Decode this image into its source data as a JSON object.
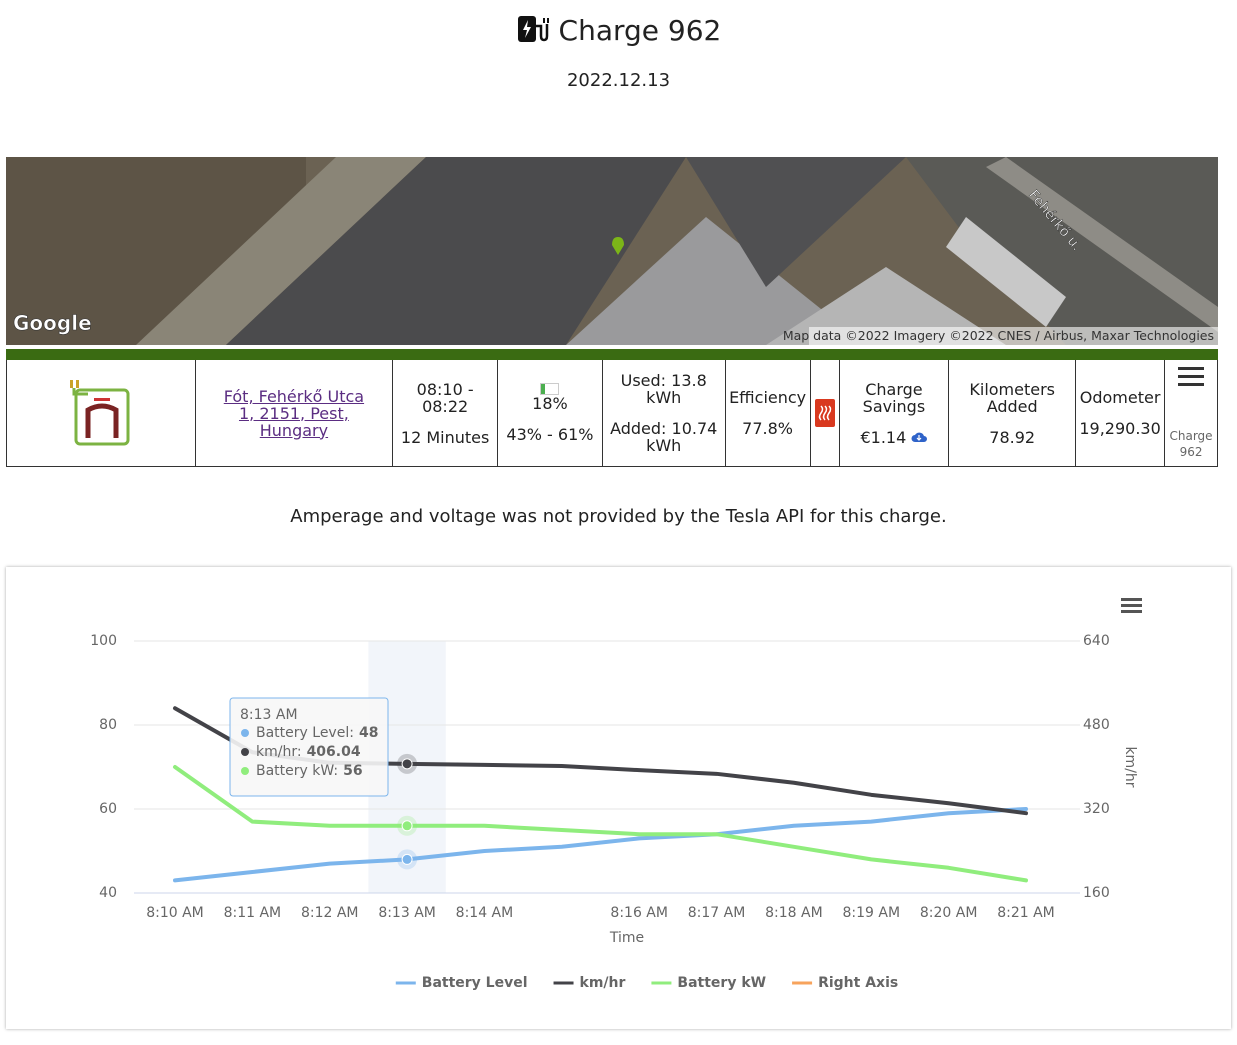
{
  "header": {
    "title": "Charge 962",
    "date": "2022.12.13"
  },
  "map": {
    "street_label": "Fehérkő u.",
    "logo": "Google",
    "attribution": "Map data ©2022 Imagery ©2022 CNES / Airbus, Maxar Technologies"
  },
  "summary": {
    "address": "Fót, Fehérkő Utca 1, 2151, Pest, Hungary",
    "time_range": "08:10 - 08:22",
    "duration": "12 Minutes",
    "battery_now": "18%",
    "battery_range": "43% - 61%",
    "used": "Used: 13.8 kWh",
    "added": "Added: 10.74 kWh",
    "efficiency_label": "Efficiency",
    "efficiency": "77.8%",
    "savings_label": "Charge Savings",
    "savings": "€1.14",
    "km_label": "Kilometers Added",
    "km": "78.92",
    "odometer_label": "Odometer",
    "odometer": "19,290.30",
    "menu_caption": "Charge 962"
  },
  "note": "Amperage and voltage was not provided by the Tesla API for this charge.",
  "chart_data": {
    "type": "line",
    "categories": [
      "8:10 AM",
      "8:11 AM",
      "8:12 AM",
      "8:13 AM",
      "8:14 AM",
      null,
      "8:16 AM",
      "8:17 AM",
      "8:18 AM",
      "8:19 AM",
      "8:20 AM",
      "8:21 AM"
    ],
    "x_label": "Time",
    "y2_label": "km/hr",
    "ylim": [
      40,
      100
    ],
    "yticks": [
      40,
      60,
      80,
      100
    ],
    "y2lim": [
      160,
      640
    ],
    "y2ticks": [
      160,
      320,
      480,
      640
    ],
    "grid": true,
    "legend": "bottom",
    "series": [
      {
        "name": "Battery Level",
        "color": "#7cb5ec",
        "values": [
          43,
          45,
          47,
          48,
          50,
          51,
          53,
          54,
          56,
          57,
          59,
          60
        ]
      },
      {
        "name": "km/hr",
        "color": "#434348",
        "axis": "y2",
        "values": [
          512,
          428,
          408,
          406.04,
          404,
          402,
          394,
          387,
          370,
          347,
          331,
          312
        ]
      },
      {
        "name": "Battery kW",
        "color": "#90ed7d",
        "values": [
          70,
          57,
          56,
          56,
          56,
          55,
          54,
          54,
          51,
          48,
          46,
          43
        ]
      },
      {
        "name": "Right Axis",
        "color": "#f7a35c",
        "axis": "y2",
        "values": [
          null,
          null,
          null,
          null,
          null,
          null,
          null,
          null,
          null,
          null,
          null,
          null
        ]
      }
    ],
    "tooltip": {
      "x": "8:13 AM",
      "labels": [
        "Battery Level:",
        "km/hr:",
        "Battery kW:"
      ]
    }
  }
}
